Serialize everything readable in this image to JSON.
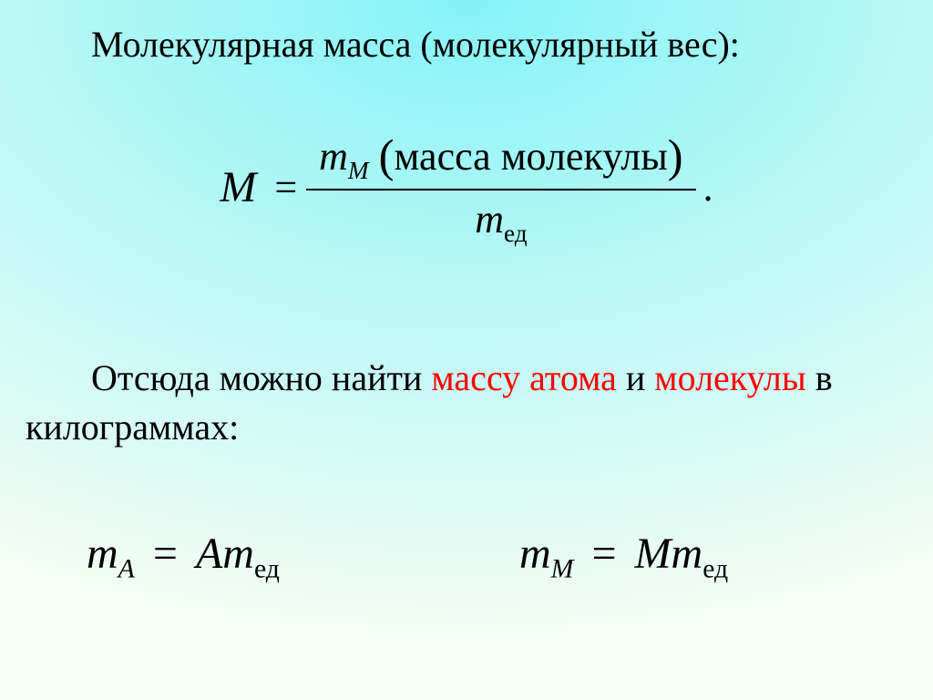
{
  "background": {
    "gradient_type": "radial",
    "center": "50% 0%",
    "inner_color": "#86f3f6",
    "outer_color": "#f3fdf4"
  },
  "typography": {
    "family": "Times New Roman",
    "body_fontsize": 40,
    "formula_fontsize": 48,
    "fraction_fontsize": 44,
    "text_color": "#000000",
    "highlight_color": "#ff0000"
  },
  "text": {
    "line1": "Молекулярная масса (молекулярный вес):",
    "line2_pre": "Отсюда можно найти ",
    "line2_hl1": "массу атома",
    "line2_mid": " и ",
    "line2_hl2": "молекулы",
    "line2_post": " в килограммах:"
  },
  "formula_main": {
    "lhs_var": "M",
    "eq": "=",
    "num_var": "m",
    "num_sub": "M",
    "num_paren_text": "масса молекулы",
    "den_var": "m",
    "den_sub": "ед",
    "period": "."
  },
  "formula_a": {
    "lhs_var": "m",
    "lhs_sub": "A",
    "eq": "=",
    "rhs_var1": "A",
    "rhs_var2": "m",
    "rhs_sub": "ед"
  },
  "formula_m": {
    "lhs_var": "m",
    "lhs_sub": "M",
    "eq": "=",
    "rhs_var1": "M",
    "rhs_var2": "m",
    "rhs_sub": "ед"
  }
}
